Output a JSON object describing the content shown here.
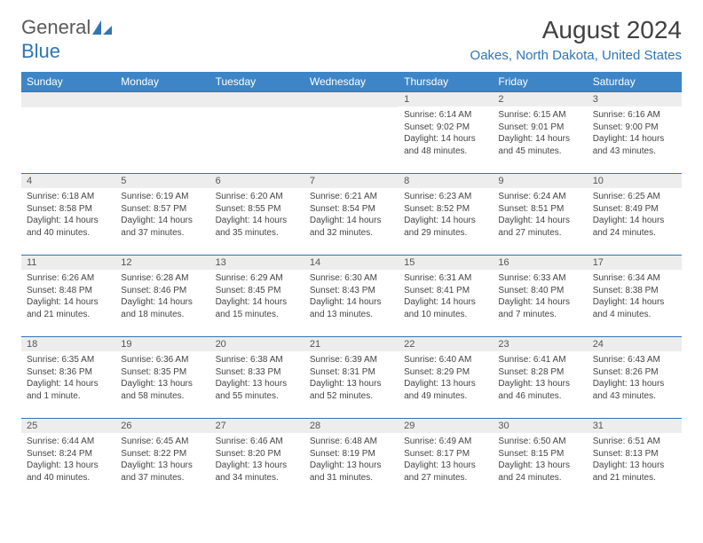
{
  "logo": {
    "general": "General",
    "blue": "Blue"
  },
  "title": "August 2024",
  "location": "Oakes, North Dakota, United States",
  "colors": {
    "header_bg": "#3d85c6",
    "accent": "#2e75b6",
    "daynum_bg": "#ededed",
    "text": "#444444"
  },
  "weekdays": [
    "Sunday",
    "Monday",
    "Tuesday",
    "Wednesday",
    "Thursday",
    "Friday",
    "Saturday"
  ],
  "weeks": [
    [
      {
        "empty": true
      },
      {
        "empty": true
      },
      {
        "empty": true
      },
      {
        "empty": true
      },
      {
        "num": "1",
        "sunrise": "Sunrise: 6:14 AM",
        "sunset": "Sunset: 9:02 PM",
        "daylight": "Daylight: 14 hours and 48 minutes."
      },
      {
        "num": "2",
        "sunrise": "Sunrise: 6:15 AM",
        "sunset": "Sunset: 9:01 PM",
        "daylight": "Daylight: 14 hours and 45 minutes."
      },
      {
        "num": "3",
        "sunrise": "Sunrise: 6:16 AM",
        "sunset": "Sunset: 9:00 PM",
        "daylight": "Daylight: 14 hours and 43 minutes."
      }
    ],
    [
      {
        "num": "4",
        "sunrise": "Sunrise: 6:18 AM",
        "sunset": "Sunset: 8:58 PM",
        "daylight": "Daylight: 14 hours and 40 minutes."
      },
      {
        "num": "5",
        "sunrise": "Sunrise: 6:19 AM",
        "sunset": "Sunset: 8:57 PM",
        "daylight": "Daylight: 14 hours and 37 minutes."
      },
      {
        "num": "6",
        "sunrise": "Sunrise: 6:20 AM",
        "sunset": "Sunset: 8:55 PM",
        "daylight": "Daylight: 14 hours and 35 minutes."
      },
      {
        "num": "7",
        "sunrise": "Sunrise: 6:21 AM",
        "sunset": "Sunset: 8:54 PM",
        "daylight": "Daylight: 14 hours and 32 minutes."
      },
      {
        "num": "8",
        "sunrise": "Sunrise: 6:23 AM",
        "sunset": "Sunset: 8:52 PM",
        "daylight": "Daylight: 14 hours and 29 minutes."
      },
      {
        "num": "9",
        "sunrise": "Sunrise: 6:24 AM",
        "sunset": "Sunset: 8:51 PM",
        "daylight": "Daylight: 14 hours and 27 minutes."
      },
      {
        "num": "10",
        "sunrise": "Sunrise: 6:25 AM",
        "sunset": "Sunset: 8:49 PM",
        "daylight": "Daylight: 14 hours and 24 minutes."
      }
    ],
    [
      {
        "num": "11",
        "sunrise": "Sunrise: 6:26 AM",
        "sunset": "Sunset: 8:48 PM",
        "daylight": "Daylight: 14 hours and 21 minutes."
      },
      {
        "num": "12",
        "sunrise": "Sunrise: 6:28 AM",
        "sunset": "Sunset: 8:46 PM",
        "daylight": "Daylight: 14 hours and 18 minutes."
      },
      {
        "num": "13",
        "sunrise": "Sunrise: 6:29 AM",
        "sunset": "Sunset: 8:45 PM",
        "daylight": "Daylight: 14 hours and 15 minutes."
      },
      {
        "num": "14",
        "sunrise": "Sunrise: 6:30 AM",
        "sunset": "Sunset: 8:43 PM",
        "daylight": "Daylight: 14 hours and 13 minutes."
      },
      {
        "num": "15",
        "sunrise": "Sunrise: 6:31 AM",
        "sunset": "Sunset: 8:41 PM",
        "daylight": "Daylight: 14 hours and 10 minutes."
      },
      {
        "num": "16",
        "sunrise": "Sunrise: 6:33 AM",
        "sunset": "Sunset: 8:40 PM",
        "daylight": "Daylight: 14 hours and 7 minutes."
      },
      {
        "num": "17",
        "sunrise": "Sunrise: 6:34 AM",
        "sunset": "Sunset: 8:38 PM",
        "daylight": "Daylight: 14 hours and 4 minutes."
      }
    ],
    [
      {
        "num": "18",
        "sunrise": "Sunrise: 6:35 AM",
        "sunset": "Sunset: 8:36 PM",
        "daylight": "Daylight: 14 hours and 1 minute."
      },
      {
        "num": "19",
        "sunrise": "Sunrise: 6:36 AM",
        "sunset": "Sunset: 8:35 PM",
        "daylight": "Daylight: 13 hours and 58 minutes."
      },
      {
        "num": "20",
        "sunrise": "Sunrise: 6:38 AM",
        "sunset": "Sunset: 8:33 PM",
        "daylight": "Daylight: 13 hours and 55 minutes."
      },
      {
        "num": "21",
        "sunrise": "Sunrise: 6:39 AM",
        "sunset": "Sunset: 8:31 PM",
        "daylight": "Daylight: 13 hours and 52 minutes."
      },
      {
        "num": "22",
        "sunrise": "Sunrise: 6:40 AM",
        "sunset": "Sunset: 8:29 PM",
        "daylight": "Daylight: 13 hours and 49 minutes."
      },
      {
        "num": "23",
        "sunrise": "Sunrise: 6:41 AM",
        "sunset": "Sunset: 8:28 PM",
        "daylight": "Daylight: 13 hours and 46 minutes."
      },
      {
        "num": "24",
        "sunrise": "Sunrise: 6:43 AM",
        "sunset": "Sunset: 8:26 PM",
        "daylight": "Daylight: 13 hours and 43 minutes."
      }
    ],
    [
      {
        "num": "25",
        "sunrise": "Sunrise: 6:44 AM",
        "sunset": "Sunset: 8:24 PM",
        "daylight": "Daylight: 13 hours and 40 minutes."
      },
      {
        "num": "26",
        "sunrise": "Sunrise: 6:45 AM",
        "sunset": "Sunset: 8:22 PM",
        "daylight": "Daylight: 13 hours and 37 minutes."
      },
      {
        "num": "27",
        "sunrise": "Sunrise: 6:46 AM",
        "sunset": "Sunset: 8:20 PM",
        "daylight": "Daylight: 13 hours and 34 minutes."
      },
      {
        "num": "28",
        "sunrise": "Sunrise: 6:48 AM",
        "sunset": "Sunset: 8:19 PM",
        "daylight": "Daylight: 13 hours and 31 minutes."
      },
      {
        "num": "29",
        "sunrise": "Sunrise: 6:49 AM",
        "sunset": "Sunset: 8:17 PM",
        "daylight": "Daylight: 13 hours and 27 minutes."
      },
      {
        "num": "30",
        "sunrise": "Sunrise: 6:50 AM",
        "sunset": "Sunset: 8:15 PM",
        "daylight": "Daylight: 13 hours and 24 minutes."
      },
      {
        "num": "31",
        "sunrise": "Sunrise: 6:51 AM",
        "sunset": "Sunset: 8:13 PM",
        "daylight": "Daylight: 13 hours and 21 minutes."
      }
    ]
  ]
}
